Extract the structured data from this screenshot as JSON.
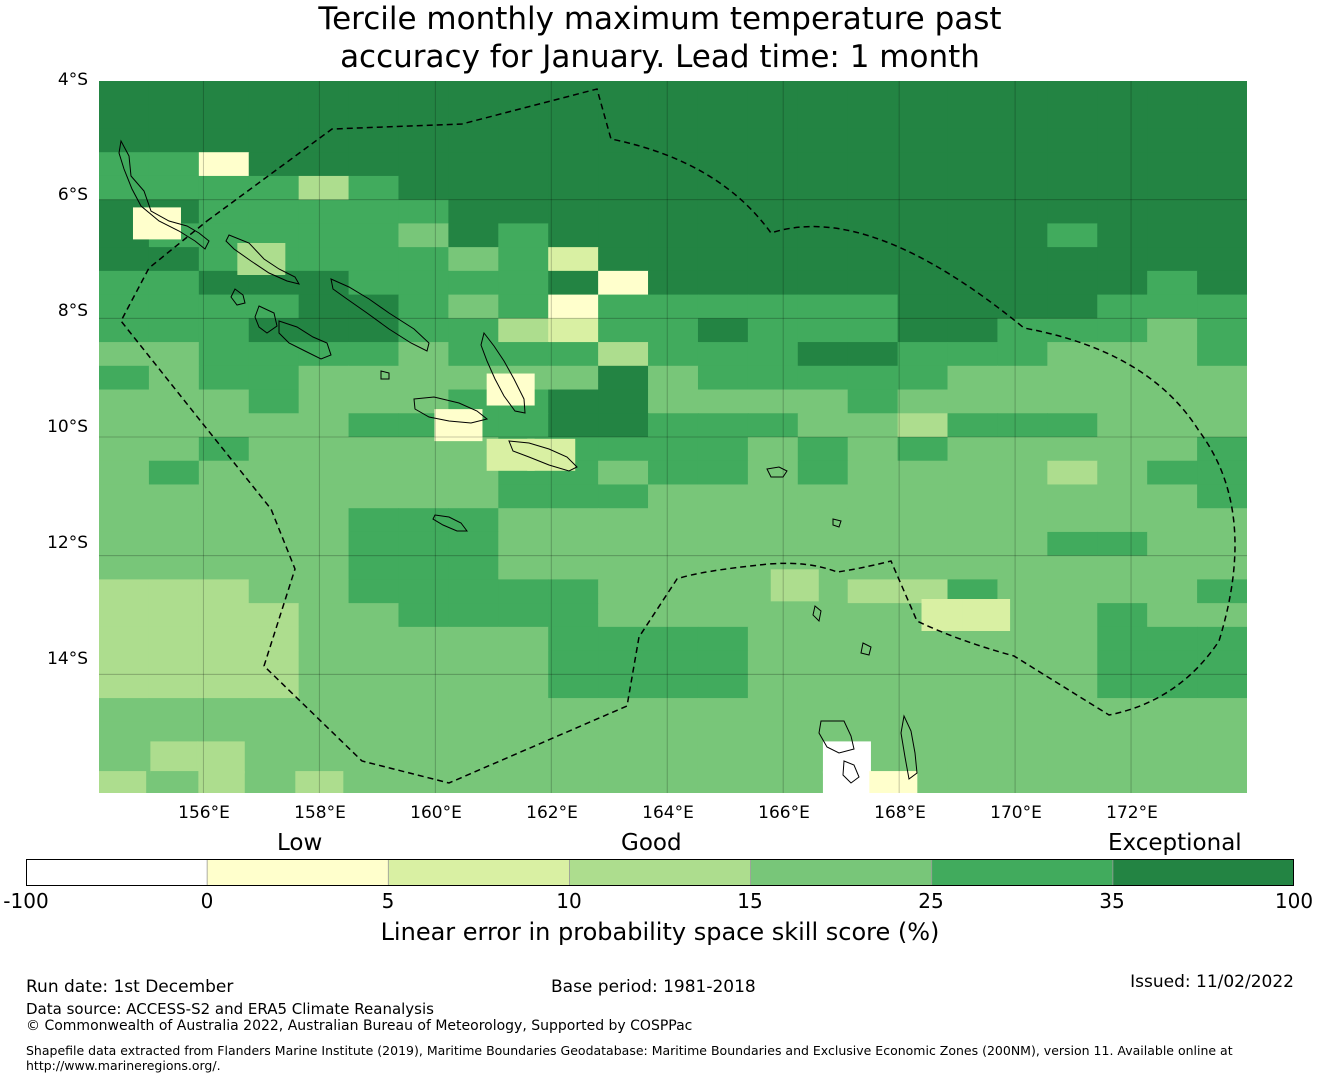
{
  "title_line1": "Tercile monthly maximum temperature past",
  "title_line2": "accuracy for January. Lead time: 1 month",
  "map": {
    "lat_labels": [
      "4°S",
      "6°S",
      "8°S",
      "10°S",
      "12°S",
      "14°S"
    ],
    "lon_labels": [
      "156°E",
      "158°E",
      "160°E",
      "162°E",
      "164°E",
      "166°E",
      "168°E",
      "170°E",
      "172°E"
    ],
    "lat_range": [
      -16.0,
      -4.0
    ],
    "lon_range": [
      154.2,
      174.0
    ],
    "palette": [
      "#ffffff",
      "#ffffcc",
      "#d9f0a3",
      "#addd8e",
      "#78c679",
      "#41ab5d",
      "#238443"
    ],
    "grid_rows": [
      "66666666666666666666666",
      "66666666666666666666666",
      "66666666666666666666666",
      "55166666666666666666666",
      "55553566666666666666666",
      "66555556666666666666666",
      "65555546566666666665666",
      "66555554526666666666666",
      "55666555561666666666656",
      "55556654515555556666555",
      "55566655325565556655545",
      "44555545553555665554445",
      "54554444446455555444444",
      "44454445566444454444444",
      "44444555566555443555444",
      "44544444555554545444445",
      "45444444554554544443455",
      "44444444555444444444445",
      "44444555444444444444444",
      "44444555444444444445544",
      "44444555444444444444444",
      "33344555554444433544445",
      "33334455554444444444544",
      "33334444455554444444555",
      "33334444455554444444555",
      "33334444455554444444555",
      "44444444444444444444444",
      "44444444444444444444444",
      "44444444444444444444444",
      "44444444444444444444444"
    ],
    "overrides": [
      {
        "lat": 6.4,
        "lon": 155.2,
        "cls": 1
      },
      {
        "lat": 9.2,
        "lon": 161.3,
        "cls": 1
      },
      {
        "lat": 9.8,
        "lon": 160.4,
        "cls": 1
      },
      {
        "lat": 10.3,
        "lon": 161.3,
        "cls": 2
      },
      {
        "lat": 10.3,
        "lon": 162.0,
        "cls": 2
      },
      {
        "lat": 7.0,
        "lon": 157.0,
        "cls": 3
      },
      {
        "lat": 13.0,
        "lon": 168.8,
        "cls": 2
      },
      {
        "lat": 13.0,
        "lon": 169.5,
        "cls": 2
      },
      {
        "lat": 12.5,
        "lon": 166.2,
        "cls": 3
      },
      {
        "lat": 15.4,
        "lon": 167.1,
        "cls": 0
      },
      {
        "lat": 15.9,
        "lon": 167.1,
        "cls": 0
      },
      {
        "lat": 15.9,
        "lon": 167.9,
        "cls": 1
      },
      {
        "lat": 15.9,
        "lon": 158.0,
        "cls": 3
      },
      {
        "lat": 15.4,
        "lon": 155.5,
        "cls": 3
      },
      {
        "lat": 15.4,
        "lon": 156.3,
        "cls": 3
      },
      {
        "lat": 15.9,
        "lon": 156.3,
        "cls": 3
      },
      {
        "lat": 15.9,
        "lon": 154.6,
        "cls": 3
      },
      {
        "lat": 15.9,
        "lon": 155.5,
        "cls": 4
      }
    ]
  },
  "colorbar": {
    "category_labels": [
      "Low",
      "Good",
      "Exceptional"
    ],
    "tick_labels": [
      "-100",
      "0",
      "5",
      "10",
      "15",
      "25",
      "35",
      "100"
    ],
    "colors": [
      "#ffffff",
      "#ffffcc",
      "#d9f0a3",
      "#addd8e",
      "#78c679",
      "#41ab5d",
      "#238443"
    ],
    "title": "Linear error in probability space skill score (%)"
  },
  "footer": {
    "run_date": "Run date: 1st December",
    "base_period": "Base period: 1981-2018",
    "issued": "Issued: 11/02/2022",
    "data_source": "Data source: ACCESS-S2 and ERA5 Climate Reanalysis",
    "copyright": "© Commonwealth of Australia 2022, Australian Bureau of Meteorology, Supported by COSPPac",
    "shapefile_line1": "Shapefile data extracted from Flanders Marine Institute (2019), Maritime Boundaries Geodatabase: Maritime Boundaries and Exclusive Economic Zones (200NM), version 11. Available online at",
    "shapefile_line2": "http://www.marineregions.org/."
  }
}
